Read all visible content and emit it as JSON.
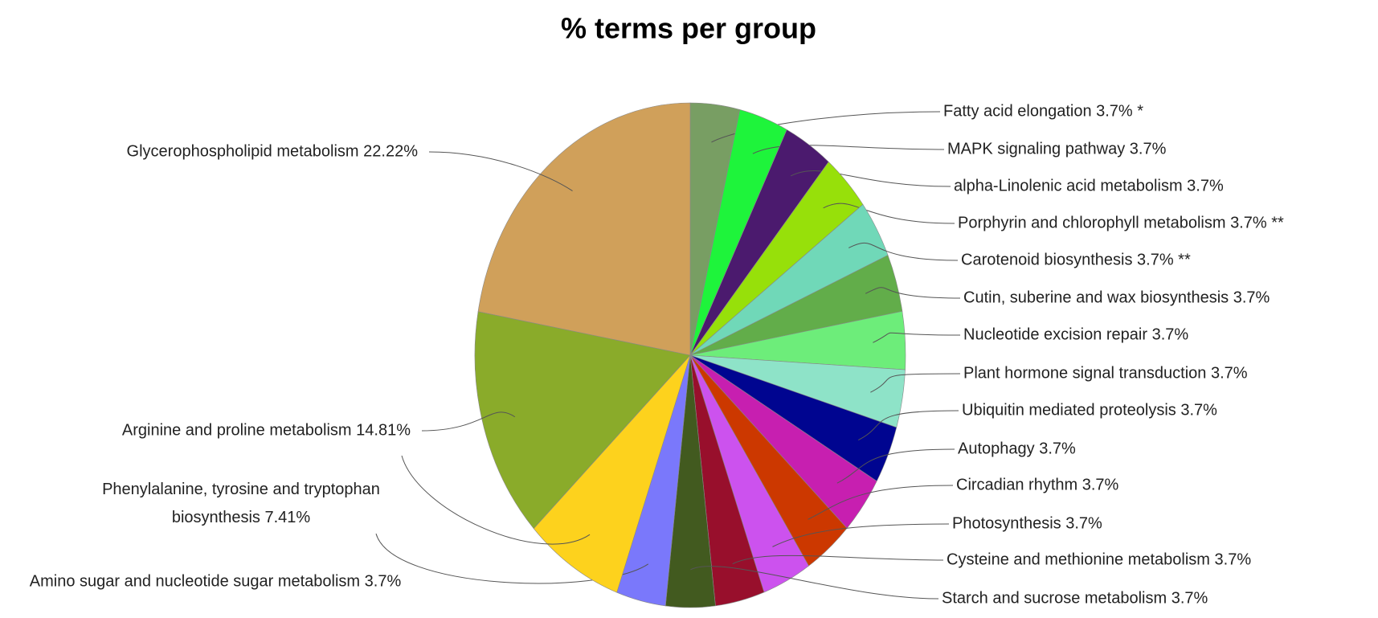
{
  "chart_data": {
    "type": "pie",
    "title": "% terms per group",
    "categories": [
      "Fatty acid elongation",
      "MAPK signaling pathway",
      "alpha-Linolenic acid metabolism",
      "Porphyrin and chlorophyll metabolism",
      "Carotenoid biosynthesis",
      "Cutin, suberine and wax biosynthesis",
      "Nucleotide excision repair",
      "Plant hormone signal transduction",
      "Ubiquitin mediated proteolysis",
      "Autophagy",
      "Circadian rhythm",
      "Photosynthesis",
      "Cysteine and methionine metabolism",
      "Starch and sucrose metabolism",
      "Amino sugar and nucleotide sugar metabolism",
      "Phenylalanine, tyrosine and tryptophan biosynthesis",
      "Arginine and proline metabolism",
      "Glycerophospholipid metabolism"
    ],
    "values": [
      3.7,
      3.7,
      3.7,
      3.7,
      3.7,
      3.7,
      3.7,
      3.7,
      3.7,
      3.7,
      3.7,
      3.7,
      3.7,
      3.7,
      3.7,
      7.41,
      14.81,
      22.22
    ],
    "value_labels": [
      "3.7% *",
      "3.7%",
      "3.7%",
      "3.7% **",
      "3.7% **",
      "3.7%",
      "3.7%",
      "3.7%",
      "3.7%",
      "3.7%",
      "3.7%",
      "3.7%",
      "3.7%",
      "3.7%",
      "3.7%",
      "7.41%",
      "14.81%",
      "22.22%"
    ],
    "colors": [
      "#789e63",
      "#1ef43b",
      "#4b1a6e",
      "#97e00a",
      "#70d8b8",
      "#62ad4a",
      "#6ded7a",
      "#8ee3c8",
      "#000590",
      "#c71fb0",
      "#cc3800",
      "#cc52ee",
      "#980f2c",
      "#425a1f",
      "#7a78fb",
      "#fdd21d",
      "#8aab2a",
      "#d0a05a"
    ]
  }
}
